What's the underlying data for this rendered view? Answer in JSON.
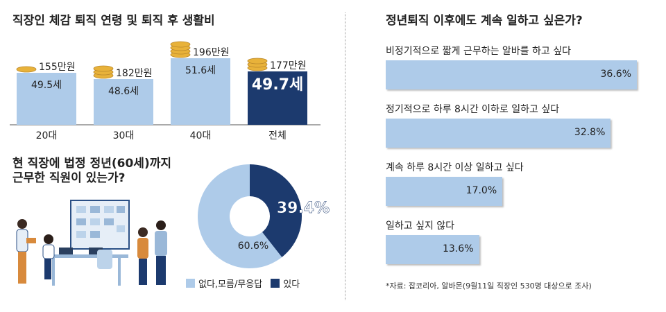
{
  "left_title": "직장인 체감 퇴직 연령 및 퇴직 후 생활비",
  "middle_title_lines": [
    "현 직장에 법정 정년(60세)까지",
    "근무한 직원이 있는가?"
  ],
  "right_title": "정년퇴직 이후에도 계속 일하고 싶은가?",
  "source_note": "*자료: 잡코리아, 알바몬(9월11일 직장인 530명 대상으로 조사)",
  "colors": {
    "light_blue": "#aecbe9",
    "navy": "#1c3a6e",
    "gold": "#e8b23a",
    "text": "#222222"
  },
  "chart_data": [
    {
      "type": "bar",
      "title": "직장인 체감 퇴직 연령 및 퇴직 후 생활비",
      "categories": [
        "20대",
        "30대",
        "40대",
        "전체"
      ],
      "series": [
        {
          "name": "",
          "values": [
            49.5,
            48.6,
            51.6,
            49.7
          ],
          "labels": [
            "49.5세",
            "48.6세",
            "51.6세",
            "49.7세"
          ]
        }
      ],
      "cost_labels": [
        "155만원",
        "182만원",
        "196만원",
        "177만원"
      ],
      "cost_values": [
        155,
        182,
        196,
        177
      ],
      "highlight_index": 3,
      "coin_icon": "coin-stack-icon"
    },
    {
      "type": "pie",
      "title": "현 직장에 법정 정년(60세)까지 근무한 직원이 있는가?",
      "slices": [
        {
          "name": "있다",
          "value": 39.4,
          "label": "39.4%",
          "color": "#1c3a6e"
        },
        {
          "name": "없다,모름/무응답",
          "value": 60.6,
          "label": "60.6%",
          "color": "#aecbe9"
        }
      ],
      "donut": true,
      "legend": [
        {
          "name": "없다,모름/무응답",
          "color": "#aecbe9"
        },
        {
          "name": "있다",
          "color": "#1c3a6e"
        }
      ],
      "illustration_icon": "office-workers-illustration"
    },
    {
      "type": "bar",
      "orientation": "horizontal",
      "title": "정년퇴직 이후에도 계속 일하고 싶은가?",
      "categories": [
        "비정기적으로 짧게 근무하는 알바를 하고 싶다",
        "정기적으로 하루 8시간 이하로 일하고 싶다",
        "계속 하루 8시간 이상 일하고 싶다",
        "일하고 싶지 않다"
      ],
      "values": [
        36.6,
        32.8,
        17.0,
        13.6
      ],
      "value_labels": [
        "36.6%",
        "32.8%",
        "17.0%",
        "13.6%"
      ],
      "xlim": [
        0,
        36.6
      ]
    }
  ]
}
